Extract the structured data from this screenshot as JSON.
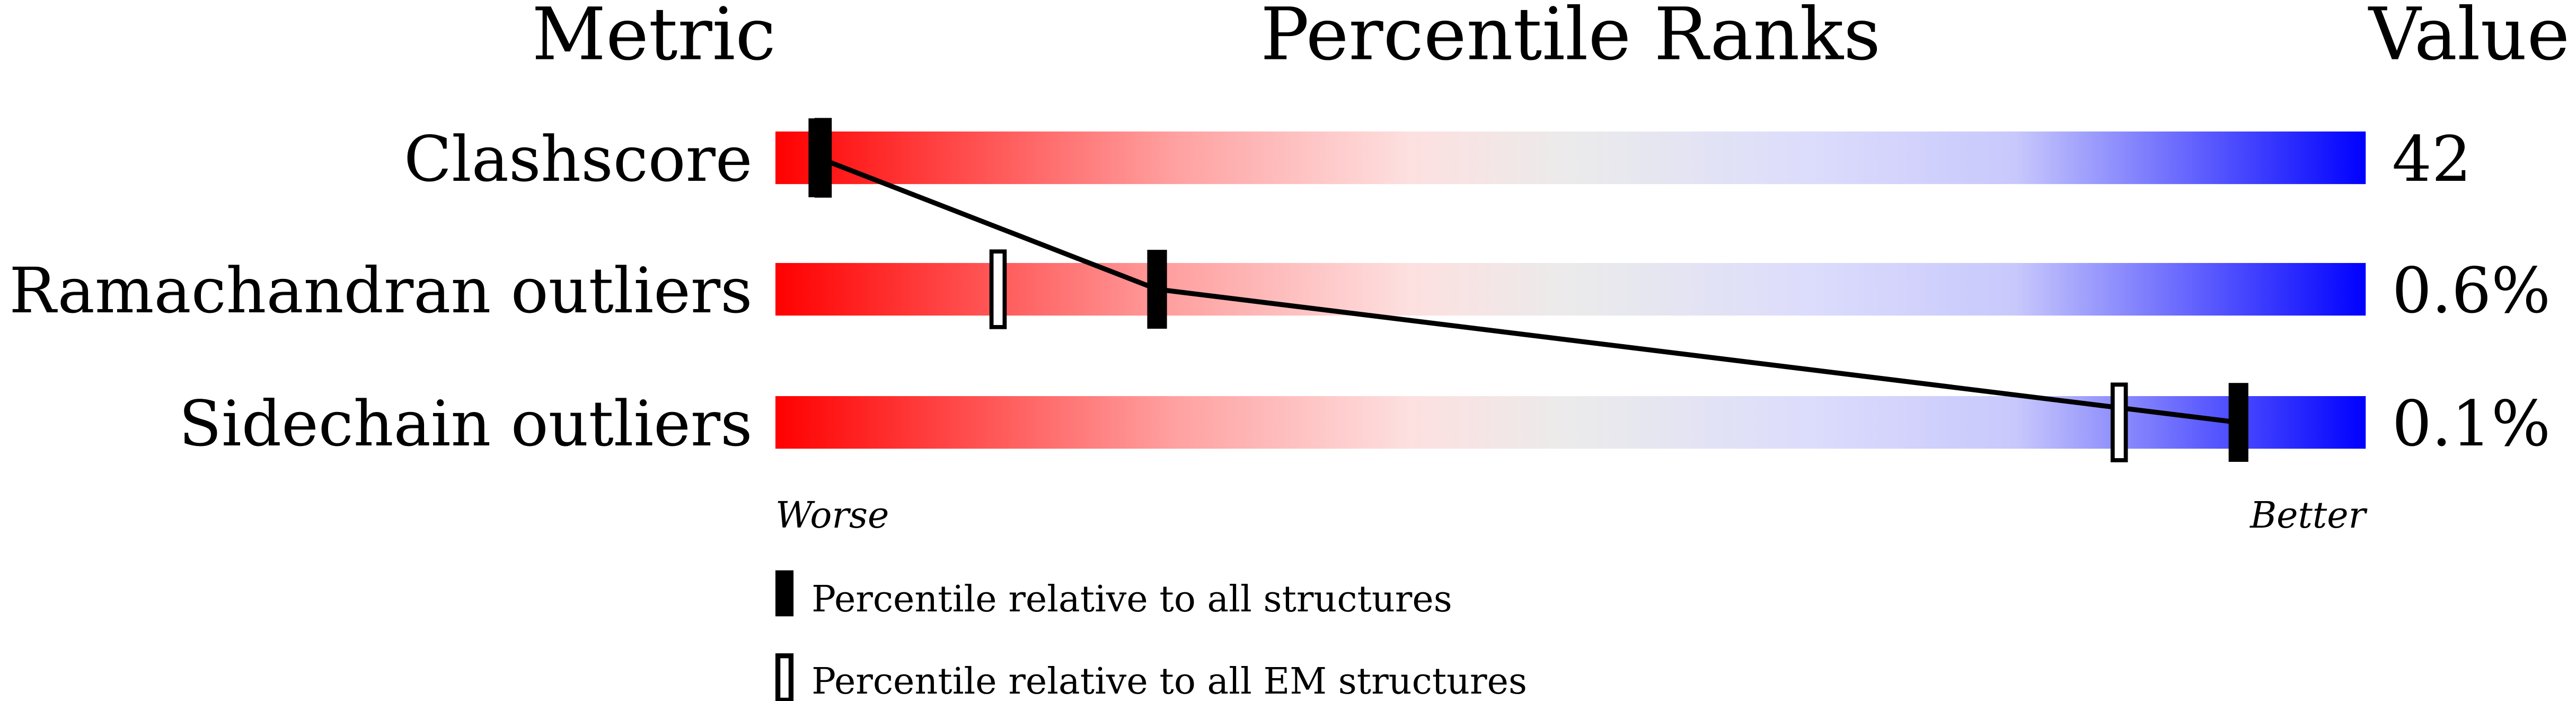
{
  "chart_data": {
    "type": "percentile-slider",
    "headers": {
      "metric": "Metric",
      "ranks": "Percentile Ranks",
      "value": "Value"
    },
    "metrics": [
      {
        "name": "Clashscore",
        "value": "42",
        "percentile_all": 2.7,
        "percentile_em": 3.0
      },
      {
        "name": "Ramachandran outliers",
        "value": "0.6%",
        "percentile_all": 24,
        "percentile_em": 14
      },
      {
        "name": "Sidechain outliers",
        "value": "0.1%",
        "percentile_all": 92,
        "percentile_em": 84.5
      }
    ],
    "axis": {
      "worse": "Worse",
      "better": "Better",
      "range": [
        0,
        100
      ]
    },
    "legend": {
      "all": "Percentile relative to all structures",
      "em": "Percentile relative to all EM structures"
    },
    "colors": {
      "worse": "#ff0000",
      "middle": "#ebebeb",
      "better": "#0000ff"
    }
  }
}
